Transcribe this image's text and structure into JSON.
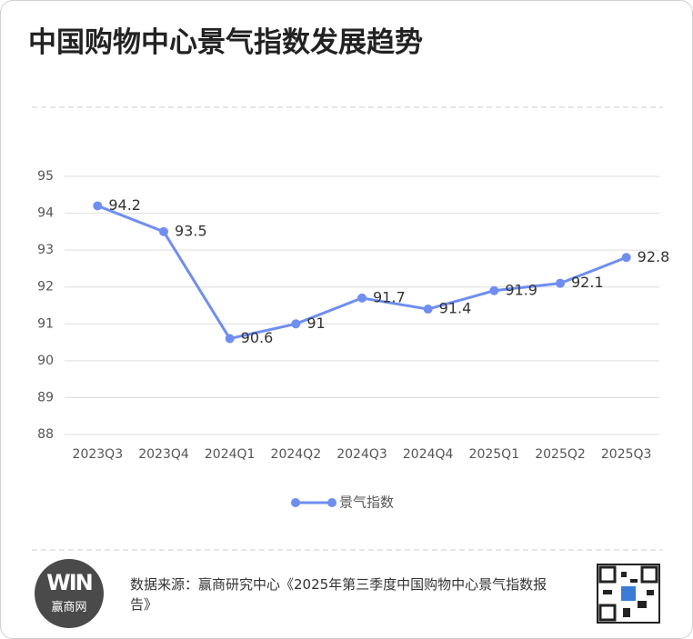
{
  "chart_data": {
    "type": "line",
    "title": "中国购物中心景气指数发展趋势",
    "categories": [
      "2023Q3",
      "2023Q4",
      "2024Q1",
      "2024Q2",
      "2024Q3",
      "2024Q4",
      "2025Q1",
      "2025Q2",
      "2025Q3"
    ],
    "series": [
      {
        "name": "景气指数",
        "color": "#6f8ef0",
        "values": [
          94.2,
          93.5,
          90.6,
          91,
          91.7,
          91.4,
          91.9,
          92.1,
          92.8
        ]
      }
    ],
    "ylim": [
      88,
      95
    ],
    "yticks": [
      88,
      89,
      90,
      91,
      92,
      93,
      94,
      95
    ],
    "grid": true,
    "legend": "bottom"
  },
  "footer": {
    "logo_text": "赢商网",
    "source": "数据来源：赢商研究中心《2025年第三季度中国购物中心景气指数报告》"
  }
}
